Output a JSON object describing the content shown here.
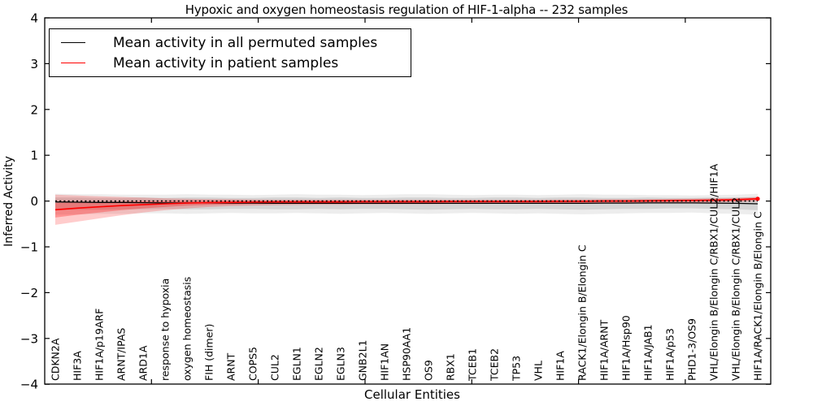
{
  "title": "Hypoxic and oxygen homeostasis regulation of HIF-1-alpha -- 232 samples",
  "legend": {
    "entries": [
      {
        "label": "Mean activity in all permuted samples",
        "color": "#000000"
      },
      {
        "label": "Mean activity in patient samples",
        "color": "#ff0000"
      }
    ],
    "position": "upper left"
  },
  "chart_data": {
    "type": "line",
    "title": "Hypoxic and oxygen homeostasis regulation of HIF-1-alpha -- 232 samples",
    "xlabel": "Cellular Entities",
    "ylabel": "Inferred Activity",
    "ylim": [
      -4,
      4
    ],
    "yticks": [
      4,
      3,
      2,
      1,
      0,
      -1,
      -2,
      -3,
      -4
    ],
    "ytick_labels": [
      "4",
      "3",
      "2",
      "1",
      "0",
      "−1",
      "−2",
      "−3",
      "−4"
    ],
    "xaxis_minor_tick_positions": [
      5,
      10,
      15,
      20,
      25,
      30
    ],
    "xaxis_numeric_range": [
      0,
      34
    ],
    "grid": false,
    "zero_line": 0,
    "legend_position": "upper left",
    "categories": [
      "CDKN2A",
      "HIF3A",
      "HIF1A/p19ARF",
      "ARNT/IPAS",
      "ARD1A",
      "response to hypoxia",
      "oxygen homeostasis",
      "FIH (dimer)",
      "ARNT",
      "COPS5",
      "CUL2",
      "EGLN1",
      "EGLN2",
      "EGLN3",
      "GNB2L1",
      "HIF1AN",
      "HSP90AA1",
      "OS9",
      "RBX1",
      "TCEB1",
      "TCEB2",
      "TP53",
      "VHL",
      "HIF1A",
      "RACK1/Elongin B/Elongin C",
      "HIF1A/ARNT",
      "HIF1A/Hsp90",
      "HIF1A/JAB1",
      "HIF1A/p53",
      "PHD1-3/OS9",
      "VHL/Elongin B/Elongin C/RBX1/CUL2/HIF1A",
      "VHL/Elongin B/Elongin C/RBX1/CUL2",
      "HIF1A/RACK1/Elongin B/Elongin C"
    ],
    "series": [
      {
        "name": "Mean activity in all permuted samples",
        "color": "#000000",
        "width": 1.3,
        "values": [
          -0.02,
          -0.025,
          -0.03,
          -0.03,
          -0.035,
          -0.04,
          -0.04,
          -0.04,
          -0.045,
          -0.045,
          -0.05,
          -0.05,
          -0.05,
          -0.05,
          -0.05,
          -0.05,
          -0.05,
          -0.05,
          -0.05,
          -0.05,
          -0.05,
          -0.05,
          -0.05,
          -0.05,
          -0.05,
          -0.045,
          -0.045,
          -0.04,
          -0.04,
          -0.04,
          -0.045,
          -0.05,
          -0.06
        ]
      },
      {
        "name": "Mean activity in patient samples",
        "color": "#ff0000",
        "width": 1.6,
        "end_marker": true,
        "values": [
          -0.19,
          -0.155,
          -0.125,
          -0.1,
          -0.08,
          -0.06,
          -0.045,
          -0.035,
          -0.03,
          -0.025,
          -0.02,
          -0.02,
          -0.02,
          -0.02,
          -0.015,
          -0.015,
          -0.015,
          -0.015,
          -0.01,
          -0.01,
          -0.01,
          -0.01,
          -0.01,
          -0.005,
          -0.005,
          0.0,
          0.0,
          0.005,
          0.01,
          0.015,
          0.02,
          0.03,
          0.05
        ]
      }
    ],
    "bands": [
      {
        "name": "permuted-outer-band",
        "color": "rgba(0,0,0,0.07)",
        "top": [
          0.16,
          0.15,
          0.15,
          0.14,
          0.14,
          0.14,
          0.15,
          0.14,
          0.14,
          0.13,
          0.14,
          0.15,
          0.14,
          0.14,
          0.13,
          0.14,
          0.15,
          0.15,
          0.14,
          0.13,
          0.14,
          0.14,
          0.13,
          0.14,
          0.15,
          0.14,
          0.14,
          0.13,
          0.13,
          0.12,
          0.13,
          0.14,
          0.16
        ],
        "bottom": [
          -0.3,
          -0.29,
          -0.28,
          -0.28,
          -0.27,
          -0.27,
          -0.28,
          -0.27,
          -0.26,
          -0.27,
          -0.27,
          -0.26,
          -0.27,
          -0.28,
          -0.27,
          -0.26,
          -0.27,
          -0.28,
          -0.27,
          -0.26,
          -0.27,
          -0.28,
          -0.27,
          -0.28,
          -0.29,
          -0.28,
          -0.27,
          -0.26,
          -0.26,
          -0.25,
          -0.27,
          -0.28,
          -0.3
        ]
      },
      {
        "name": "permuted-inner-band",
        "color": "rgba(0,0,0,0.10)",
        "top": [
          0.08,
          0.08,
          0.07,
          0.07,
          0.08,
          0.07,
          0.08,
          0.08,
          0.07,
          0.07,
          0.08,
          0.08,
          0.07,
          0.08,
          0.07,
          0.07,
          0.08,
          0.08,
          0.07,
          0.07,
          0.08,
          0.08,
          0.07,
          0.08,
          0.08,
          0.07,
          0.07,
          0.08,
          0.07,
          0.07,
          0.08,
          0.08,
          0.09
        ],
        "bottom": [
          -0.2,
          -0.19,
          -0.19,
          -0.18,
          -0.18,
          -0.17,
          -0.18,
          -0.18,
          -0.17,
          -0.17,
          -0.18,
          -0.18,
          -0.17,
          -0.18,
          -0.17,
          -0.17,
          -0.18,
          -0.19,
          -0.18,
          -0.17,
          -0.18,
          -0.18,
          -0.17,
          -0.18,
          -0.19,
          -0.18,
          -0.17,
          -0.17,
          -0.16,
          -0.16,
          -0.17,
          -0.18,
          -0.2
        ]
      },
      {
        "name": "patient-outer-band",
        "color": "rgba(255,0,0,0.20)",
        "top": [
          0.14,
          0.12,
          0.105,
          0.09,
          0.075,
          0.06,
          0.05,
          0.045,
          0.04,
          0.035,
          0.03,
          0.03,
          0.03,
          0.03,
          0.03,
          0.03,
          0.03,
          0.03,
          0.03,
          0.03,
          0.03,
          0.03,
          0.03,
          0.035,
          0.035,
          0.04,
          0.04,
          0.045,
          0.05,
          0.055,
          0.06,
          0.07,
          0.09
        ],
        "bottom": [
          -0.52,
          -0.45,
          -0.38,
          -0.31,
          -0.25,
          -0.2,
          -0.16,
          -0.13,
          -0.11,
          -0.1,
          -0.09,
          -0.085,
          -0.08,
          -0.08,
          -0.075,
          -0.075,
          -0.07,
          -0.07,
          -0.065,
          -0.065,
          -0.06,
          -0.06,
          -0.06,
          -0.055,
          -0.055,
          -0.05,
          -0.05,
          -0.045,
          -0.04,
          -0.035,
          -0.03,
          -0.02,
          -0.01
        ]
      },
      {
        "name": "patient-inner-band",
        "color": "rgba(255,0,0,0.28)",
        "top": [
          -0.04,
          -0.03,
          -0.02,
          -0.01,
          0.0,
          0.005,
          0.01,
          0.01,
          0.01,
          0.01,
          0.01,
          0.01,
          0.01,
          0.01,
          0.01,
          0.01,
          0.01,
          0.01,
          0.01,
          0.01,
          0.01,
          0.01,
          0.01,
          0.015,
          0.015,
          0.02,
          0.02,
          0.025,
          0.03,
          0.035,
          0.04,
          0.05,
          0.07
        ],
        "bottom": [
          -0.36,
          -0.3,
          -0.25,
          -0.2,
          -0.16,
          -0.13,
          -0.1,
          -0.085,
          -0.075,
          -0.065,
          -0.06,
          -0.055,
          -0.05,
          -0.05,
          -0.05,
          -0.045,
          -0.045,
          -0.045,
          -0.04,
          -0.04,
          -0.04,
          -0.04,
          -0.04,
          -0.035,
          -0.035,
          -0.03,
          -0.03,
          -0.025,
          -0.02,
          -0.015,
          -0.01,
          0.0,
          0.02
        ]
      }
    ]
  }
}
